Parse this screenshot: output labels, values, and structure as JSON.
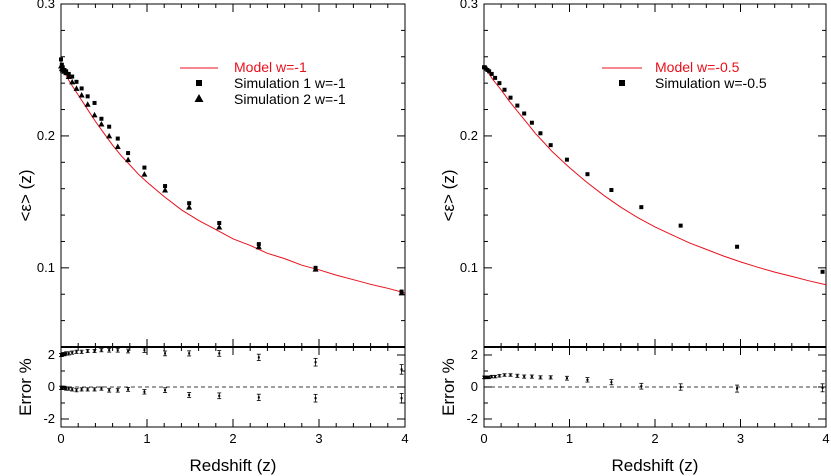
{
  "colors": {
    "model": "#e8101c",
    "points": "#000000",
    "axis": "#000000"
  },
  "chart_data": [
    {
      "type": "line",
      "panel": "left",
      "xlabel": "Redshift (z)",
      "ylabel": "<ε> (z)",
      "error_ylabel": "Error %",
      "xlim": [
        0,
        4
      ],
      "ylim": [
        0.04,
        0.3
      ],
      "error_ylim": [
        -2.5,
        2.5
      ],
      "x_ticks": [
        "0",
        "1",
        "2",
        "3",
        "4"
      ],
      "y_ticks": [
        "0.1",
        "0.2",
        "0.3"
      ],
      "error_y_ticks": [
        "-2",
        "0",
        "2"
      ],
      "legend_position": "top-right",
      "model": {
        "name": "Model w=-1",
        "x": [
          0,
          0.05,
          0.1,
          0.15,
          0.2,
          0.3,
          0.4,
          0.5,
          0.6,
          0.7,
          0.8,
          0.9,
          1.0,
          1.2,
          1.4,
          1.6,
          1.8,
          2.0,
          2.2,
          2.4,
          2.6,
          2.8,
          3.0,
          3.2,
          3.4,
          3.6,
          3.8,
          4.0
        ],
        "y": [
          0.252,
          0.247,
          0.241,
          0.236,
          0.231,
          0.221,
          0.211,
          0.202,
          0.193,
          0.185,
          0.178,
          0.171,
          0.165,
          0.154,
          0.144,
          0.136,
          0.129,
          0.122,
          0.117,
          0.111,
          0.107,
          0.102,
          0.0985,
          0.0945,
          0.091,
          0.0875,
          0.0845,
          0.081
        ]
      },
      "series": [
        {
          "name": "Simulation 1 w=-1",
          "marker": "square",
          "x": [
            0.0,
            0.01,
            0.02,
            0.04,
            0.06,
            0.09,
            0.13,
            0.18,
            0.24,
            0.31,
            0.39,
            0.47,
            0.56,
            0.66,
            0.78,
            0.97,
            1.21,
            1.49,
            1.84,
            2.3,
            2.96,
            3.96
          ],
          "y": [
            0.258,
            0.254,
            0.252,
            0.25,
            0.249,
            0.247,
            0.245,
            0.241,
            0.236,
            0.23,
            0.225,
            0.213,
            0.207,
            0.198,
            0.187,
            0.176,
            0.162,
            0.149,
            0.134,
            0.118,
            0.1,
            0.082
          ]
        },
        {
          "name": "Simulation 2 w=-1",
          "marker": "triangle",
          "x": [
            0.0,
            0.01,
            0.02,
            0.04,
            0.06,
            0.09,
            0.13,
            0.18,
            0.24,
            0.31,
            0.39,
            0.47,
            0.56,
            0.66,
            0.78,
            0.97,
            1.21,
            1.49,
            1.84,
            2.3,
            2.96,
            3.96
          ],
          "y": [
            0.253,
            0.251,
            0.25,
            0.249,
            0.248,
            0.245,
            0.241,
            0.236,
            0.231,
            0.224,
            0.216,
            0.209,
            0.2,
            0.192,
            0.182,
            0.171,
            0.159,
            0.146,
            0.131,
            0.116,
            0.099,
            0.081
          ]
        }
      ],
      "error_series": [
        {
          "x": [
            0.0,
            0.01,
            0.02,
            0.04,
            0.06,
            0.09,
            0.13,
            0.18,
            0.24,
            0.31,
            0.39,
            0.47,
            0.56,
            0.66,
            0.78,
            0.97,
            1.21,
            1.49,
            1.84,
            2.3,
            2.96,
            3.96
          ],
          "y": [
            2.0,
            2.0,
            2.05,
            2.05,
            2.1,
            2.1,
            2.15,
            2.2,
            2.2,
            2.25,
            2.25,
            2.3,
            2.3,
            2.3,
            2.25,
            2.3,
            2.1,
            2.1,
            2.1,
            1.85,
            1.55,
            1.1
          ],
          "err": [
            0.1,
            0.1,
            0.1,
            0.1,
            0.1,
            0.1,
            0.1,
            0.1,
            0.1,
            0.1,
            0.1,
            0.1,
            0.12,
            0.12,
            0.12,
            0.14,
            0.15,
            0.16,
            0.18,
            0.2,
            0.24,
            0.3
          ]
        },
        {
          "x": [
            0.0,
            0.01,
            0.02,
            0.04,
            0.06,
            0.09,
            0.13,
            0.18,
            0.24,
            0.31,
            0.39,
            0.47,
            0.56,
            0.66,
            0.78,
            0.97,
            1.21,
            1.49,
            1.84,
            2.3,
            2.96,
            3.96
          ],
          "y": [
            -0.05,
            -0.05,
            -0.05,
            -0.05,
            -0.1,
            -0.1,
            -0.15,
            -0.2,
            -0.15,
            -0.15,
            -0.15,
            -0.1,
            -0.2,
            -0.2,
            -0.15,
            -0.3,
            -0.2,
            -0.5,
            -0.55,
            -0.65,
            -0.7,
            -0.7
          ],
          "err": [
            0.1,
            0.1,
            0.1,
            0.1,
            0.1,
            0.1,
            0.1,
            0.1,
            0.1,
            0.1,
            0.1,
            0.1,
            0.12,
            0.12,
            0.12,
            0.14,
            0.15,
            0.16,
            0.18,
            0.2,
            0.24,
            0.3
          ]
        }
      ]
    },
    {
      "type": "line",
      "panel": "right",
      "xlabel": "Redshift (z)",
      "ylabel": "<ε> (z)",
      "error_ylabel": "Error %",
      "xlim": [
        0,
        4
      ],
      "ylim": [
        0.04,
        0.3
      ],
      "error_ylim": [
        -2.5,
        2.5
      ],
      "x_ticks": [
        "0",
        "1",
        "2",
        "3",
        "4"
      ],
      "y_ticks": [
        "0.1",
        "0.2",
        "0.3"
      ],
      "error_y_ticks": [
        "-2",
        "0",
        "2"
      ],
      "legend_position": "top-right",
      "model": {
        "name": "Model w=-0.5",
        "x": [
          0,
          0.05,
          0.1,
          0.15,
          0.2,
          0.3,
          0.4,
          0.5,
          0.6,
          0.7,
          0.8,
          0.9,
          1.0,
          1.2,
          1.4,
          1.6,
          1.8,
          2.0,
          2.2,
          2.4,
          2.6,
          2.8,
          3.0,
          3.2,
          3.4,
          3.6,
          3.8,
          4.0
        ],
        "y": [
          0.252,
          0.248,
          0.243,
          0.239,
          0.235,
          0.226,
          0.218,
          0.21,
          0.202,
          0.195,
          0.188,
          0.182,
          0.176,
          0.165,
          0.155,
          0.146,
          0.138,
          0.131,
          0.125,
          0.119,
          0.114,
          0.109,
          0.1045,
          0.1005,
          0.0968,
          0.0935,
          0.0902,
          0.0872
        ]
      },
      "series": [
        {
          "name": "Simulation w=-0.5",
          "marker": "square",
          "x": [
            0.0,
            0.01,
            0.02,
            0.04,
            0.06,
            0.09,
            0.13,
            0.18,
            0.24,
            0.31,
            0.39,
            0.47,
            0.56,
            0.66,
            0.78,
            0.97,
            1.21,
            1.49,
            1.84,
            2.3,
            2.96,
            3.96
          ],
          "y": [
            0.252,
            0.252,
            0.251,
            0.25,
            0.249,
            0.247,
            0.244,
            0.24,
            0.235,
            0.229,
            0.223,
            0.217,
            0.21,
            0.202,
            0.193,
            0.182,
            0.171,
            0.159,
            0.146,
            0.132,
            0.116,
            0.097
          ]
        }
      ],
      "error_series": [
        {
          "x": [
            0.0,
            0.01,
            0.02,
            0.04,
            0.06,
            0.09,
            0.13,
            0.18,
            0.24,
            0.31,
            0.39,
            0.47,
            0.56,
            0.66,
            0.78,
            0.97,
            1.21,
            1.49,
            1.84,
            2.3,
            2.96,
            3.96
          ],
          "y": [
            0.6,
            0.6,
            0.6,
            0.6,
            0.6,
            0.65,
            0.65,
            0.7,
            0.75,
            0.75,
            0.7,
            0.65,
            0.65,
            0.6,
            0.6,
            0.55,
            0.45,
            0.3,
            0.05,
            0.0,
            -0.1,
            -0.05
          ],
          "err": [
            0.08,
            0.08,
            0.08,
            0.08,
            0.08,
            0.08,
            0.08,
            0.08,
            0.08,
            0.08,
            0.1,
            0.1,
            0.1,
            0.1,
            0.1,
            0.12,
            0.14,
            0.16,
            0.18,
            0.2,
            0.22,
            0.25
          ]
        }
      ]
    }
  ]
}
